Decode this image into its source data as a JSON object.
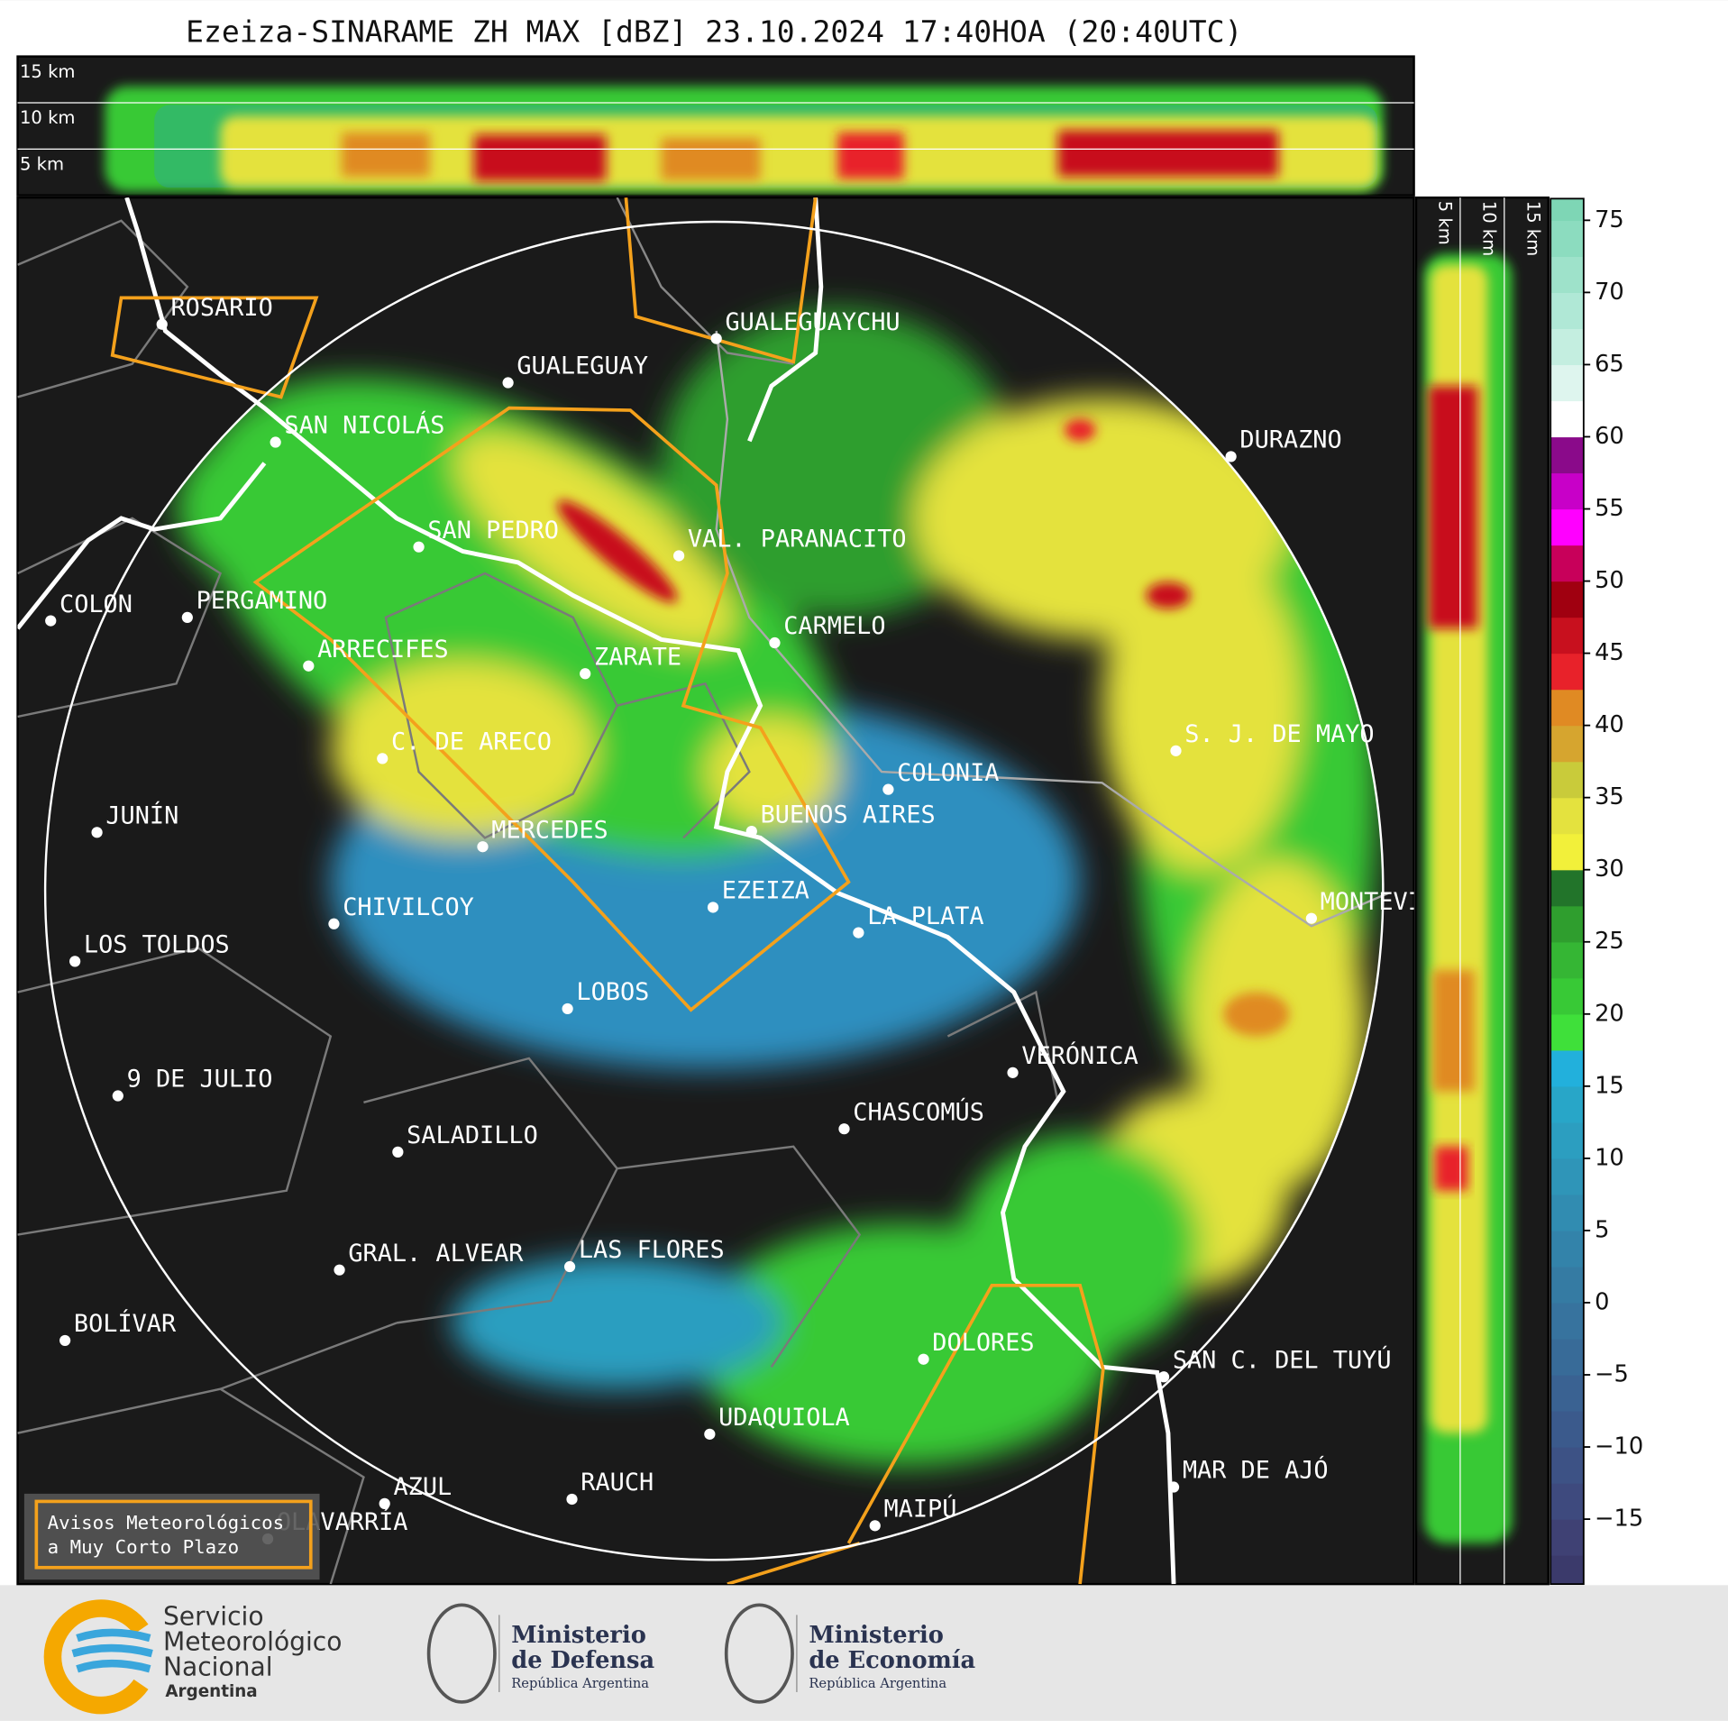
{
  "header": {
    "title": "Ezeiza-SINARAME ZH MAX [dBZ] 23.10.2024 17:40HOA (20:40UTC)"
  },
  "top_panel": {
    "height_labels": [
      "15 km",
      "10 km",
      "5 km"
    ]
  },
  "side_panel": {
    "height_labels": [
      "5 km",
      "10 km",
      "15 km"
    ]
  },
  "map": {
    "cities": [
      "ROSARIO",
      "GUALEGUAYCHU",
      "GUALEGUAY",
      "SAN NICOLÁS",
      "DURAZNO",
      "SAN PEDRO",
      "VAL. PARANACITO",
      "COLON",
      "PERGAMINO",
      "CARMELO",
      "ARRECIFES",
      "ZARATE",
      "C. DE ARECO",
      "S. J. DE MAYO",
      "COLONIA",
      "JUNÍN",
      "BUENOS AIRES",
      "MERCEDES",
      "EZEIZA",
      "MONTEVIDEO",
      "CHIVILCOY",
      "LA PLATA",
      "LOS TOLDOS",
      "LOBOS",
      "VERÓNICA",
      "9 DE JULIO",
      "CHASCOMÚS",
      "SALADILLO",
      "GRAL. ALVEAR",
      "LAS FLORES",
      "BOLÍVAR",
      "DOLORES",
      "SAN C. DEL TUYÚ",
      "UDAQUIOLA",
      "MAR DE AJÓ",
      "AZUL",
      "RAUCH",
      "OLAVARRÍA",
      "MAIPÚ"
    ]
  },
  "colorbar": {
    "lim": [
      -19.5,
      76.5
    ],
    "ticks": [
      75,
      70,
      65,
      60,
      55,
      50,
      45,
      40,
      35,
      30,
      25,
      20,
      15,
      10,
      5,
      0,
      {
        "value": -5,
        "label": "−5"
      },
      {
        "value": -10,
        "label": "−10"
      },
      {
        "value": -15,
        "label": "−15"
      }
    ],
    "start": -20,
    "step": 2.5,
    "colors": [
      "#3b3a6b",
      "#3f4174",
      "#3e4a7e",
      "#3d5285",
      "#3b5a8c",
      "#3a6292",
      "#386b98",
      "#37739e",
      "#357ba3",
      "#3383aa",
      "#318cb1",
      "#2f95b8",
      "#2c9ec0",
      "#28a6c8",
      "#22b0dc",
      "#3fe03a",
      "#38c936",
      "#35b634",
      "#2f9e2e",
      "#22742a",
      "#f2f03a",
      "#e4e23e",
      "#c9cb3a",
      "#d6a52f",
      "#e08a23",
      "#e8222a",
      "#c8101e",
      "#a00010",
      "#c8005a",
      "#ff00ff",
      "#c800c8",
      "#8a0a8a",
      "#ffffff",
      "#def5ee",
      "#c4eee0",
      "#b0e8d6",
      "#9ee2ca",
      "#8cdcbf",
      "#7ed6b5"
    ]
  },
  "legend": {
    "lines": [
      "Avisos Meteorológicos",
      "a Muy Corto Plazo"
    ]
  },
  "footer": {
    "smn": [
      "Servicio",
      "Meteorológico",
      "Nacional",
      "Argentina"
    ],
    "defensa": [
      "Ministerio",
      "de Defensa",
      "República Argentina"
    ],
    "economia": [
      "Ministerio",
      "de Economía",
      "República Argentina"
    ]
  }
}
